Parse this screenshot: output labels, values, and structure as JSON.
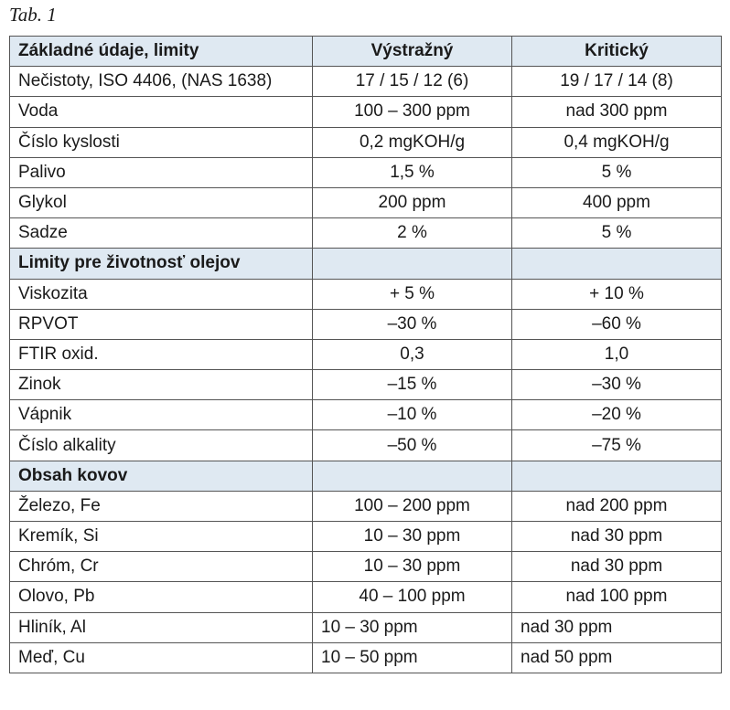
{
  "caption": "Tab. 1",
  "table": {
    "header": [
      "Základné údaje, limity",
      "Výstražný",
      "Kritický"
    ],
    "rows": [
      [
        "Nečistoty, ISO 4406, (NAS 1638)",
        "17 / 15 / 12 (6)",
        "19 / 17 / 14 (8)"
      ],
      [
        "Voda",
        "100 – 300 ppm",
        "nad 300 ppm"
      ],
      [
        "Číslo kyslosti",
        "0,2 mgKOH/g",
        "0,4 mgKOH/g"
      ],
      [
        "Palivo",
        "1,5 %",
        "5 %"
      ],
      [
        "Glykol",
        "200 ppm",
        "400 ppm"
      ],
      [
        "Sadze",
        "2 %",
        "5 %"
      ],
      [
        "Limity pre životnosť olejov"
      ],
      [
        "Viskozita",
        "+ 5 %",
        "+ 10 %"
      ],
      [
        "RPVOT",
        "–30 %",
        "–60 %"
      ],
      [
        "FTIR oxid.",
        "0,3",
        "1,0"
      ],
      [
        "Zinok",
        "–15 %",
        "–30 %"
      ],
      [
        "Vápnik",
        "–10 %",
        "–20 %"
      ],
      [
        "Číslo alkality",
        "–50 %",
        "–75 %"
      ],
      [
        "Obsah kovov"
      ],
      [
        "Železo, Fe",
        "100 – 200 ppm",
        "nad 200 ppm"
      ],
      [
        "Kremík, Si",
        "10 – 30 ppm",
        "nad 30 ppm"
      ],
      [
        "Chróm, Cr",
        "10 – 30 ppm",
        "nad 30 ppm"
      ],
      [
        "Olovo, Pb",
        "40 – 100 ppm",
        "nad 100 ppm"
      ],
      [
        "Hliník, Al",
        "10 – 30 ppm",
        "nad 30 ppm"
      ],
      [
        "Meď, Cu",
        "10 – 50 ppm",
        "nad 50 ppm"
      ]
    ]
  }
}
